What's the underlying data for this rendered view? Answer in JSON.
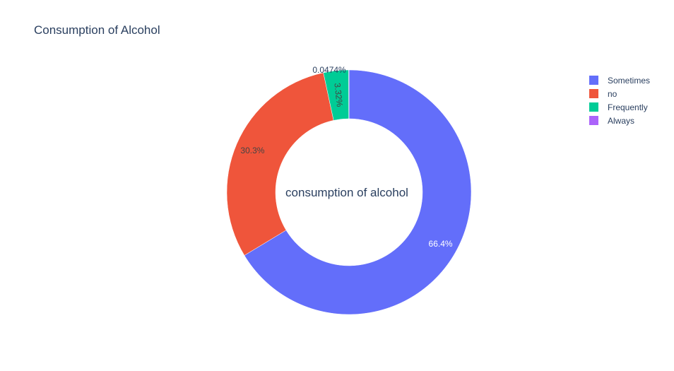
{
  "chart_data": {
    "type": "pie",
    "title": "Consumption of Alcohol",
    "center_label": "consumption of alcohol",
    "hole": true,
    "legend_position": "top-right",
    "categories": [
      "Sometimes",
      "no",
      "Frequently",
      "Always"
    ],
    "values": [
      66.4,
      30.3,
      3.32,
      0.0474
    ],
    "labels": [
      "66.4%",
      "30.3%",
      "3.32%",
      "0.0474%"
    ],
    "colors": [
      "#636efa",
      "#ef553b",
      "#00cc96",
      "#ab63fa"
    ]
  }
}
